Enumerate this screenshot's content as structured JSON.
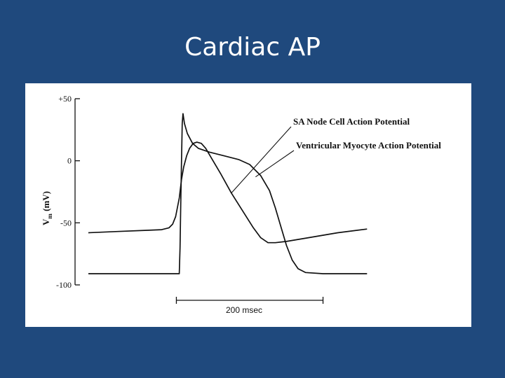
{
  "slide": {
    "title": "Cardiac AP"
  },
  "chart_data": {
    "type": "line",
    "title": "",
    "ylabel_main": "V",
    "ylabel_sub": "m",
    "ylabel_rest": " (mV)",
    "xlabel": "",
    "ylim": [
      -100,
      50
    ],
    "xlim": [
      0,
      440
    ],
    "yticks": [
      {
        "value": 50,
        "label": "+50"
      },
      {
        "value": 0,
        "label": "0"
      },
      {
        "value": -50,
        "label": "-50"
      },
      {
        "value": -100,
        "label": "-100"
      }
    ],
    "scale_bar": {
      "label": "200 msec",
      "from": 120,
      "to": 320
    },
    "series": [
      {
        "name": "SA Node Cell Action Potential",
        "color": "#111111",
        "points": [
          [
            0,
            -58
          ],
          [
            40,
            -57
          ],
          [
            80,
            -56
          ],
          [
            100,
            -55.5
          ],
          [
            110,
            -54
          ],
          [
            115,
            -51
          ],
          [
            119,
            -45
          ],
          [
            124,
            -30
          ],
          [
            127,
            -15
          ],
          [
            130,
            -5
          ],
          [
            134,
            4
          ],
          [
            138,
            10
          ],
          [
            143,
            14
          ],
          [
            148,
            15
          ],
          [
            154,
            14
          ],
          [
            160,
            10
          ],
          [
            168,
            2
          ],
          [
            180,
            -10
          ],
          [
            195,
            -26
          ],
          [
            210,
            -40
          ],
          [
            225,
            -54
          ],
          [
            235,
            -62
          ],
          [
            245,
            -66
          ],
          [
            255,
            -66
          ],
          [
            270,
            -65
          ],
          [
            300,
            -62
          ],
          [
            340,
            -58
          ],
          [
            380,
            -55
          ]
        ]
      },
      {
        "name": "Ventricular Myocyte Action Potential",
        "color": "#111111",
        "points": [
          [
            0,
            -91
          ],
          [
            60,
            -91
          ],
          [
            100,
            -91
          ],
          [
            124,
            -91
          ],
          [
            125,
            -70
          ],
          [
            126,
            -35
          ],
          [
            127,
            0
          ],
          [
            128,
            30
          ],
          [
            129,
            38
          ],
          [
            131,
            30
          ],
          [
            135,
            22
          ],
          [
            142,
            14
          ],
          [
            150,
            10
          ],
          [
            165,
            7
          ],
          [
            185,
            4
          ],
          [
            205,
            1
          ],
          [
            220,
            -3
          ],
          [
            235,
            -12
          ],
          [
            247,
            -24
          ],
          [
            255,
            -38
          ],
          [
            262,
            -52
          ],
          [
            270,
            -68
          ],
          [
            278,
            -80
          ],
          [
            286,
            -87
          ],
          [
            296,
            -90
          ],
          [
            320,
            -91
          ],
          [
            360,
            -91
          ],
          [
            380,
            -91
          ]
        ]
      }
    ]
  }
}
